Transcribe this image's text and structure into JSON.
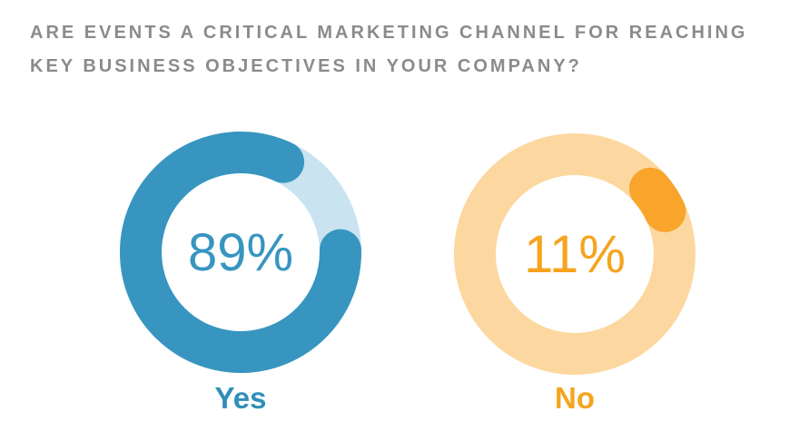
{
  "title": {
    "full_text": "ARE EVENTS A CRITICAL MARKETING CHANNEL FOR REACHING KEY BUSINESS OBJECTIVES IN YOUR COMPANY?",
    "lines": [
      "ARE EVENTS A CRITICAL MARKETING CHANNEL FOR REACHING",
      "KEY BUSINESS OBJECTIVES IN YOUR COMPANY?"
    ],
    "color": "#8b8b8b"
  },
  "chart_data": {
    "type": "pie",
    "subtype": "donut-pair",
    "title": "ARE EVENTS A CRITICAL MARKETING CHANNEL FOR REACHING KEY BUSINESS OBJECTIVES IN YOUR COMPANY?",
    "categories": [
      "Yes",
      "No"
    ],
    "values": [
      89,
      11
    ],
    "unit": "percent",
    "grid": false,
    "legend_position": "below-each-donut",
    "donuts": [
      {
        "label": "Yes",
        "value": 89,
        "value_label": "89%",
        "arc_color": "#3795c0",
        "track_color": "#c9e3f0",
        "value_color": "#3795c0",
        "label_color": "#2f8fba",
        "start_angle_deg": 76.8
      },
      {
        "label": "No",
        "value": 11,
        "value_label": "11%",
        "arc_color": "#f9a42b",
        "track_color": "#fcd8a0",
        "value_color": "#f6a41f",
        "label_color": "#f6a41f",
        "start_angle_deg": 37
      }
    ]
  }
}
